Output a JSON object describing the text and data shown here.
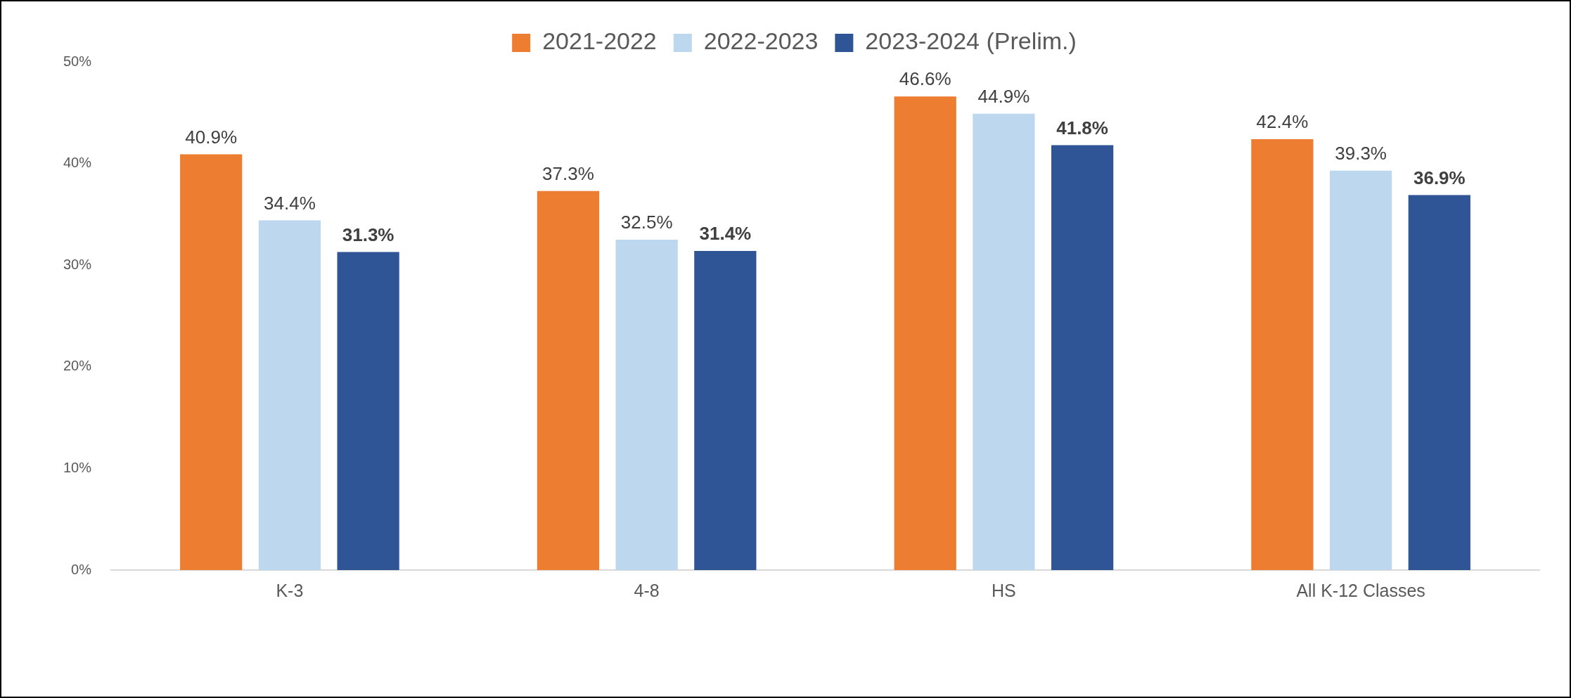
{
  "chart_data": {
    "type": "bar",
    "categories": [
      "K-3",
      "4-8",
      "HS",
      "All K-12 Classes"
    ],
    "series": [
      {
        "name": "2021-2022",
        "color": "#ed7d31",
        "values": [
          40.9,
          37.3,
          46.6,
          42.4
        ],
        "value_labels": [
          "40.9%",
          "37.3%",
          "46.6%",
          "42.4%"
        ]
      },
      {
        "name": "2022-2023",
        "color": "#bdd7ee",
        "values": [
          34.4,
          32.5,
          44.9,
          39.3
        ],
        "value_labels": [
          "34.4%",
          "32.5%",
          "44.9%",
          "39.3%"
        ]
      },
      {
        "name": "2023-2024 (Prelim.)",
        "color": "#2f5597",
        "values": [
          31.3,
          31.4,
          41.8,
          36.9
        ],
        "value_labels": [
          "31.3%",
          "31.4%",
          "41.8%",
          "36.9%"
        ]
      }
    ],
    "ylim": [
      0,
      50
    ],
    "yticks": [
      {
        "value": 0,
        "label": "0%"
      },
      {
        "value": 10,
        "label": "10%"
      },
      {
        "value": 20,
        "label": "20%"
      },
      {
        "value": 30,
        "label": "30%"
      },
      {
        "value": 40,
        "label": "40%"
      },
      {
        "value": 50,
        "label": "50%"
      }
    ],
    "grid": false,
    "legend": "top"
  }
}
